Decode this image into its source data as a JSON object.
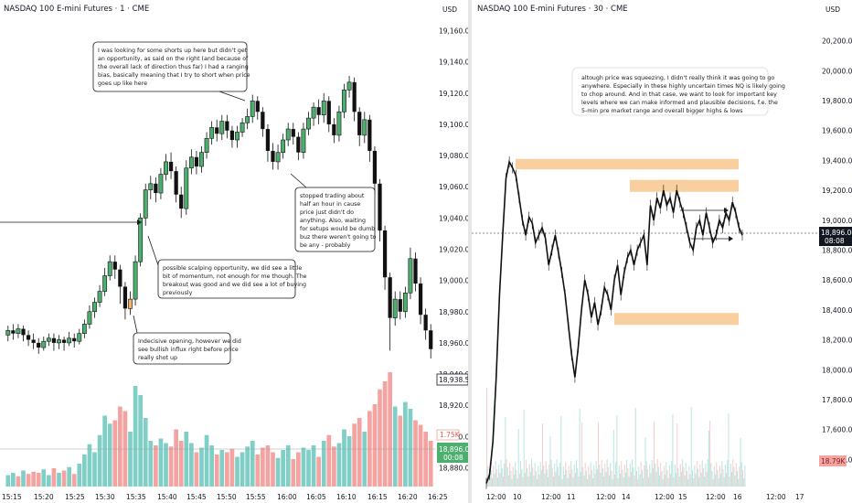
{
  "left": {
    "title": "NASDAQ 100 E-mini Futures · 1 · CME",
    "currency": "USD",
    "price_label": "18,938.50",
    "volume_badge": "1.75K",
    "last_price": "18,896.00",
    "countdown": "00:08",
    "notes": [
      {
        "lines": [
          "I was looking for some shorts up here but didn't get",
          "an opportunity, as said on the right (and because of",
          "the overall lack of direction thus far) I had a ranging",
          "bias, basically meaning that I try to short when price",
          "goes up like here"
        ]
      },
      {
        "lines": [
          "stopped trading about",
          "half an hour in cause",
          "price just didn't do",
          "anything. Also, waiting",
          "for setups would be dumb",
          "buz there weren't going to",
          "be any - probably"
        ]
      },
      {
        "lines": [
          "possible scalping opportunity, we did see a little",
          "bit of momentum, not enough for me though. The",
          "breakout was good and we did see a lot of buying",
          "previously"
        ]
      },
      {
        "lines": [
          "Indecisive opening, however we did",
          "see bullish influx right before price",
          "really shot up"
        ]
      }
    ]
  },
  "right": {
    "title": "NASDAQ 100 E-mini Futures · 30 · CME",
    "currency": "USD",
    "last_price": "18,896.00",
    "countdown": "08:08",
    "volume_badge": "18.79K",
    "note": {
      "lines": [
        "altough price was squeezing, I didn't really think it was going to go",
        "anywhere. Especially in these highly uncertain times NQ is likely going",
        "to chop around. And in that case, we want to look for important key",
        "levels where we can make informed and plausible decisions, f.e. the",
        "5-min pre market range and overall bigger highs & lows"
      ]
    }
  },
  "colors": {
    "up": "#4caf6e",
    "down": "#111111",
    "vol_up": "#7fcfc6",
    "vol_down": "#f4a3a1",
    "zone": "#f9cfa0",
    "highlight": "#f6b26b"
  },
  "chart_data": [
    {
      "type": "candlestick",
      "title": "NASDAQ 100 E-mini Futures · 1 · CME",
      "yticks": [
        18880,
        18900,
        18920,
        18940,
        18960,
        18980,
        19000,
        19020,
        19040,
        19060,
        19080,
        19100,
        19120,
        19140,
        19160
      ],
      "ylim": [
        18875,
        19165
      ],
      "xticks": [
        "15:15",
        "15:20",
        "15:25",
        "15:30",
        "15:35",
        "15:40",
        "15:45",
        "15:50",
        "15:55",
        "16:00",
        "16:05",
        "16:10",
        "16:15",
        "16:20",
        "16:25"
      ],
      "candles": [
        {
          "o": 18965,
          "c": 18968,
          "h": 18971,
          "l": 18961
        },
        {
          "o": 18968,
          "c": 18966,
          "h": 18972,
          "l": 18962
        },
        {
          "o": 18966,
          "c": 18969,
          "h": 18972,
          "l": 18963
        },
        {
          "o": 18969,
          "c": 18965,
          "h": 18971,
          "l": 18961
        },
        {
          "o": 18965,
          "c": 18962,
          "h": 18968,
          "l": 18958
        },
        {
          "o": 18962,
          "c": 18960,
          "h": 18966,
          "l": 18956
        },
        {
          "o": 18960,
          "c": 18957,
          "h": 18963,
          "l": 18953
        },
        {
          "o": 18957,
          "c": 18961,
          "h": 18964,
          "l": 18955
        },
        {
          "o": 18961,
          "c": 18963,
          "h": 18966,
          "l": 18958
        },
        {
          "o": 18963,
          "c": 18960,
          "h": 18966,
          "l": 18955
        },
        {
          "o": 18960,
          "c": 18962,
          "h": 18965,
          "l": 18956
        },
        {
          "o": 18962,
          "c": 18960,
          "h": 18964,
          "l": 18955
        },
        {
          "o": 18960,
          "c": 18963,
          "h": 18967,
          "l": 18958
        },
        {
          "o": 18963,
          "c": 18961,
          "h": 18966,
          "l": 18957
        },
        {
          "o": 18961,
          "c": 18966,
          "h": 18969,
          "l": 18959
        },
        {
          "o": 18966,
          "c": 18972,
          "h": 18975,
          "l": 18963
        },
        {
          "o": 18972,
          "c": 18980,
          "h": 18984,
          "l": 18969
        },
        {
          "o": 18980,
          "c": 18986,
          "h": 18989,
          "l": 18976
        },
        {
          "o": 18986,
          "c": 18993,
          "h": 18997,
          "l": 18983
        },
        {
          "o": 18993,
          "c": 19003,
          "h": 19008,
          "l": 18990
        },
        {
          "o": 19003,
          "c": 19012,
          "h": 19016,
          "l": 19000
        },
        {
          "o": 19012,
          "c": 19007,
          "h": 19016,
          "l": 19001
        },
        {
          "o": 19007,
          "c": 18996,
          "h": 19010,
          "l": 18985
        },
        {
          "o": 18996,
          "c": 18982,
          "h": 18999,
          "l": 18975
        },
        {
          "o": 18982,
          "c": 18988,
          "h": 18993,
          "l": 18978
        },
        {
          "o": 18988,
          "c": 19012,
          "h": 19016,
          "l": 18984
        },
        {
          "o": 19012,
          "c": 19040,
          "h": 19043,
          "l": 19009
        },
        {
          "o": 19040,
          "c": 19058,
          "h": 19062,
          "l": 19035
        },
        {
          "o": 19058,
          "c": 19062,
          "h": 19067,
          "l": 19052
        },
        {
          "o": 19062,
          "c": 19056,
          "h": 19066,
          "l": 19050
        },
        {
          "o": 19056,
          "c": 19068,
          "h": 19072,
          "l": 19052
        },
        {
          "o": 19068,
          "c": 19076,
          "h": 19081,
          "l": 19064
        },
        {
          "o": 19076,
          "c": 19070,
          "h": 19082,
          "l": 19065
        },
        {
          "o": 19070,
          "c": 19055,
          "h": 19073,
          "l": 19050
        },
        {
          "o": 19055,
          "c": 19046,
          "h": 19060,
          "l": 19040
        },
        {
          "o": 19046,
          "c": 19072,
          "h": 19077,
          "l": 19042
        },
        {
          "o": 19072,
          "c": 19079,
          "h": 19084,
          "l": 19068
        },
        {
          "o": 19079,
          "c": 19073,
          "h": 19083,
          "l": 19068
        },
        {
          "o": 19073,
          "c": 19082,
          "h": 19086,
          "l": 19069
        },
        {
          "o": 19082,
          "c": 19091,
          "h": 19095,
          "l": 19078
        },
        {
          "o": 19091,
          "c": 19098,
          "h": 19102,
          "l": 19087
        },
        {
          "o": 19098,
          "c": 19094,
          "h": 19103,
          "l": 19089
        },
        {
          "o": 19094,
          "c": 19102,
          "h": 19106,
          "l": 19090
        },
        {
          "o": 19102,
          "c": 19096,
          "h": 19106,
          "l": 19091
        },
        {
          "o": 19096,
          "c": 19090,
          "h": 19099,
          "l": 19085
        },
        {
          "o": 19090,
          "c": 19095,
          "h": 19099,
          "l": 19085
        },
        {
          "o": 19095,
          "c": 19101,
          "h": 19104,
          "l": 19092
        },
        {
          "o": 19101,
          "c": 19105,
          "h": 19110,
          "l": 19097
        },
        {
          "o": 19105,
          "c": 19115,
          "h": 19119,
          "l": 19101
        },
        {
          "o": 19115,
          "c": 19108,
          "h": 19118,
          "l": 19103
        },
        {
          "o": 19108,
          "c": 19097,
          "h": 19111,
          "l": 19092
        },
        {
          "o": 19097,
          "c": 19083,
          "h": 19100,
          "l": 19076
        },
        {
          "o": 19083,
          "c": 19076,
          "h": 19088,
          "l": 19071
        },
        {
          "o": 19076,
          "c": 19082,
          "h": 19087,
          "l": 19071
        },
        {
          "o": 19082,
          "c": 19090,
          "h": 19094,
          "l": 19078
        },
        {
          "o": 19090,
          "c": 19097,
          "h": 19101,
          "l": 19086
        },
        {
          "o": 19097,
          "c": 19092,
          "h": 19101,
          "l": 19087
        },
        {
          "o": 19092,
          "c": 19082,
          "h": 19095,
          "l": 19077
        },
        {
          "o": 19082,
          "c": 19097,
          "h": 19101,
          "l": 19078
        },
        {
          "o": 19097,
          "c": 19104,
          "h": 19108,
          "l": 19093
        },
        {
          "o": 19104,
          "c": 19111,
          "h": 19114,
          "l": 19099
        },
        {
          "o": 19111,
          "c": 19106,
          "h": 19116,
          "l": 19100
        },
        {
          "o": 19106,
          "c": 19115,
          "h": 19120,
          "l": 19101
        },
        {
          "o": 19115,
          "c": 19100,
          "h": 19118,
          "l": 19095
        },
        {
          "o": 19100,
          "c": 19093,
          "h": 19104,
          "l": 19088
        },
        {
          "o": 19093,
          "c": 19108,
          "h": 19112,
          "l": 19089
        },
        {
          "o": 19108,
          "c": 19122,
          "h": 19126,
          "l": 19104
        },
        {
          "o": 19122,
          "c": 19127,
          "h": 19131,
          "l": 19117
        },
        {
          "o": 19127,
          "c": 19108,
          "h": 19130,
          "l": 19102
        },
        {
          "o": 19108,
          "c": 19093,
          "h": 19111,
          "l": 19086
        },
        {
          "o": 19093,
          "c": 19103,
          "h": 19108,
          "l": 19088
        },
        {
          "o": 19103,
          "c": 19083,
          "h": 19106,
          "l": 19076
        },
        {
          "o": 19083,
          "c": 19062,
          "h": 19086,
          "l": 19055
        },
        {
          "o": 19062,
          "c": 19032,
          "h": 19065,
          "l": 19025
        },
        {
          "o": 19032,
          "c": 19002,
          "h": 19035,
          "l": 18994
        },
        {
          "o": 19002,
          "c": 18976,
          "h": 19005,
          "l": 18955
        },
        {
          "o": 18976,
          "c": 18988,
          "h": 18993,
          "l": 18971
        },
        {
          "o": 18988,
          "c": 18980,
          "h": 18993,
          "l": 18975
        },
        {
          "o": 18980,
          "c": 18992,
          "h": 18996,
          "l": 18976
        },
        {
          "o": 18992,
          "c": 19014,
          "h": 19021,
          "l": 18988
        },
        {
          "o": 19014,
          "c": 18998,
          "h": 19018,
          "l": 18993
        },
        {
          "o": 18998,
          "c": 18978,
          "h": 19002,
          "l": 18972
        },
        {
          "o": 18978,
          "c": 18968,
          "h": 18982,
          "l": 18962
        },
        {
          "o": 18968,
          "c": 18956,
          "h": 18972,
          "l": 18950
        }
      ],
      "highlight_candle_index": 24,
      "volume": [
        {
          "v": 0.1,
          "up": true
        },
        {
          "v": 0.12,
          "up": true
        },
        {
          "v": 0.09,
          "up": false
        },
        {
          "v": 0.14,
          "up": true
        },
        {
          "v": 0.11,
          "up": false
        },
        {
          "v": 0.13,
          "up": false
        },
        {
          "v": 0.12,
          "up": false
        },
        {
          "v": 0.15,
          "up": true
        },
        {
          "v": 0.1,
          "up": true
        },
        {
          "v": 0.16,
          "up": false
        },
        {
          "v": 0.12,
          "up": true
        },
        {
          "v": 0.14,
          "up": false
        },
        {
          "v": 0.17,
          "up": true
        },
        {
          "v": 0.11,
          "up": false
        },
        {
          "v": 0.2,
          "up": true
        },
        {
          "v": 0.28,
          "up": true
        },
        {
          "v": 0.37,
          "up": true
        },
        {
          "v": 0.3,
          "up": true
        },
        {
          "v": 0.45,
          "up": true
        },
        {
          "v": 0.62,
          "up": true
        },
        {
          "v": 0.55,
          "up": true
        },
        {
          "v": 0.58,
          "up": false
        },
        {
          "v": 0.7,
          "up": false
        },
        {
          "v": 0.66,
          "up": false
        },
        {
          "v": 0.48,
          "up": true
        },
        {
          "v": 0.88,
          "up": true
        },
        {
          "v": 0.8,
          "up": true
        },
        {
          "v": 0.6,
          "up": true
        },
        {
          "v": 0.4,
          "up": true
        },
        {
          "v": 0.36,
          "up": false
        },
        {
          "v": 0.42,
          "up": true
        },
        {
          "v": 0.38,
          "up": true
        },
        {
          "v": 0.35,
          "up": false
        },
        {
          "v": 0.5,
          "up": false
        },
        {
          "v": 0.4,
          "up": false
        },
        {
          "v": 0.48,
          "up": true
        },
        {
          "v": 0.38,
          "up": true
        },
        {
          "v": 0.3,
          "up": false
        },
        {
          "v": 0.34,
          "up": true
        },
        {
          "v": 0.45,
          "up": true
        },
        {
          "v": 0.36,
          "up": true
        },
        {
          "v": 0.28,
          "up": false
        },
        {
          "v": 0.32,
          "up": true
        },
        {
          "v": 0.3,
          "up": false
        },
        {
          "v": 0.33,
          "up": false
        },
        {
          "v": 0.26,
          "up": true
        },
        {
          "v": 0.3,
          "up": true
        },
        {
          "v": 0.35,
          "up": true
        },
        {
          "v": 0.4,
          "up": true
        },
        {
          "v": 0.28,
          "up": false
        },
        {
          "v": 0.34,
          "up": false
        },
        {
          "v": 0.36,
          "up": false
        },
        {
          "v": 0.3,
          "up": false
        },
        {
          "v": 0.25,
          "up": true
        },
        {
          "v": 0.32,
          "up": true
        },
        {
          "v": 0.36,
          "up": true
        },
        {
          "v": 0.24,
          "up": false
        },
        {
          "v": 0.3,
          "up": false
        },
        {
          "v": 0.34,
          "up": true
        },
        {
          "v": 0.32,
          "up": true
        },
        {
          "v": 0.36,
          "up": true
        },
        {
          "v": 0.26,
          "up": false
        },
        {
          "v": 0.4,
          "up": true
        },
        {
          "v": 0.45,
          "up": false
        },
        {
          "v": 0.35,
          "up": false
        },
        {
          "v": 0.38,
          "up": true
        },
        {
          "v": 0.5,
          "up": true
        },
        {
          "v": 0.44,
          "up": true
        },
        {
          "v": 0.55,
          "up": false
        },
        {
          "v": 0.6,
          "up": false
        },
        {
          "v": 0.48,
          "up": true
        },
        {
          "v": 0.66,
          "up": false
        },
        {
          "v": 0.72,
          "up": false
        },
        {
          "v": 0.85,
          "up": false
        },
        {
          "v": 0.92,
          "up": false
        },
        {
          "v": 1.0,
          "up": false
        },
        {
          "v": 0.7,
          "up": true
        },
        {
          "v": 0.62,
          "up": false
        },
        {
          "v": 0.74,
          "up": true
        },
        {
          "v": 0.68,
          "up": true
        },
        {
          "v": 0.58,
          "up": false
        },
        {
          "v": 0.54,
          "up": false
        },
        {
          "v": 0.48,
          "up": false
        },
        {
          "v": 0.4,
          "up": false
        }
      ]
    },
    {
      "type": "candlestick",
      "title": "NASDAQ 100 E-mini Futures · 30 · CME",
      "yticks": [
        17400,
        17600,
        17800,
        18000,
        18200,
        18400,
        18600,
        18800,
        19000,
        19200,
        19400,
        19600,
        19800,
        20000,
        20200
      ],
      "ylim": [
        17280,
        20320
      ],
      "xticks": [
        "12:00",
        "10",
        "12:00",
        "11",
        "12:00",
        "14",
        "12:00",
        "15",
        "12:00",
        "16",
        "12:00",
        "17"
      ],
      "zones": [
        [
          19340,
          19410
        ],
        [
          19190,
          19270
        ],
        [
          18300,
          18380
        ]
      ],
      "path": [
        17240,
        17300,
        17520,
        17950,
        18500,
        18900,
        19280,
        19390,
        19350,
        19300,
        19150,
        19000,
        18900,
        19020,
        18980,
        18850,
        18900,
        18950,
        18880,
        18700,
        18800,
        18900,
        18780,
        18650,
        18500,
        18300,
        18100,
        17950,
        18150,
        18400,
        18600,
        18500,
        18350,
        18450,
        18300,
        18400,
        18550,
        18500,
        18400,
        18600,
        18700,
        18500,
        18650,
        18750,
        18800,
        18700,
        18800,
        18850,
        18900,
        18700,
        19100,
        19000,
        19150,
        19080,
        19200,
        19100,
        19150,
        19050,
        19200,
        19120,
        19050,
        18950,
        18850,
        18800,
        18950,
        19000,
        18900,
        19050,
        18950,
        18850,
        18900,
        19000,
        18950,
        19050,
        19000,
        19120,
        19050,
        18950,
        18900
      ]
    }
  ]
}
